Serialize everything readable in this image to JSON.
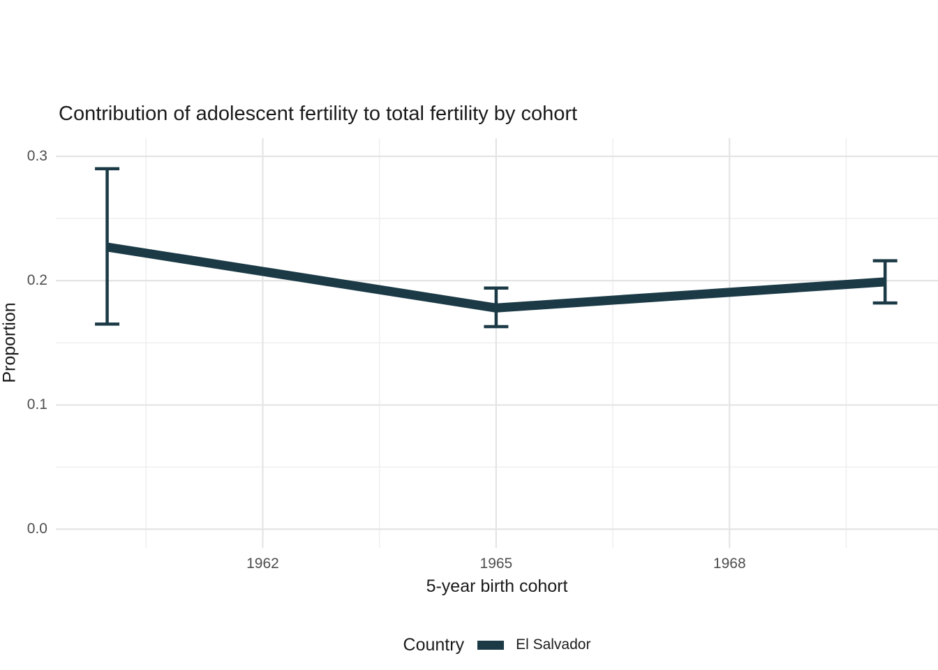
{
  "title": "Contribution of adolescent fertility to total fertility by cohort",
  "axes": {
    "x_label": "5-year birth cohort",
    "y_label": "Proportion"
  },
  "legend": {
    "title": "Country",
    "items": [
      {
        "label": "El Salvador",
        "color": "#1b3a46"
      }
    ]
  },
  "colors": {
    "line": "#1b3a46",
    "grid_major": "#e4e4e4",
    "grid_minor": "#efefef",
    "tick_label": "#4d4d4d",
    "title_text": "#1a1a1a",
    "background": "#ffffff"
  },
  "chart_data": {
    "type": "line",
    "title": "Contribution of adolescent fertility to total fertility by cohort",
    "xlabel": "5-year birth cohort",
    "ylabel": "Proportion",
    "x": [
      1960,
      1965,
      1970
    ],
    "series": [
      {
        "name": "El Salvador",
        "color": "#1b3a46",
        "values": [
          0.227,
          0.178,
          0.199
        ],
        "error_lower": [
          0.165,
          0.163,
          0.182
        ],
        "error_upper": [
          0.29,
          0.194,
          0.216
        ]
      }
    ],
    "x_ticks": [
      1962,
      1965,
      1968
    ],
    "x_tick_labels": [
      "1962",
      "1965",
      "1968"
    ],
    "x_minor_ticks": [
      1960.5,
      1963.5,
      1966.5,
      1969.5
    ],
    "y_ticks": [
      0.0,
      0.1,
      0.2,
      0.3
    ],
    "y_tick_labels": [
      "0.0",
      "0.1",
      "0.2",
      "0.3"
    ],
    "y_minor_ticks": [
      0.05,
      0.15,
      0.25
    ],
    "xlim": [
      1959.34,
      1970.68
    ],
    "ylim": [
      -0.015,
      0.3146
    ],
    "grid": true,
    "error_bars": true,
    "legend_position": "bottom"
  }
}
